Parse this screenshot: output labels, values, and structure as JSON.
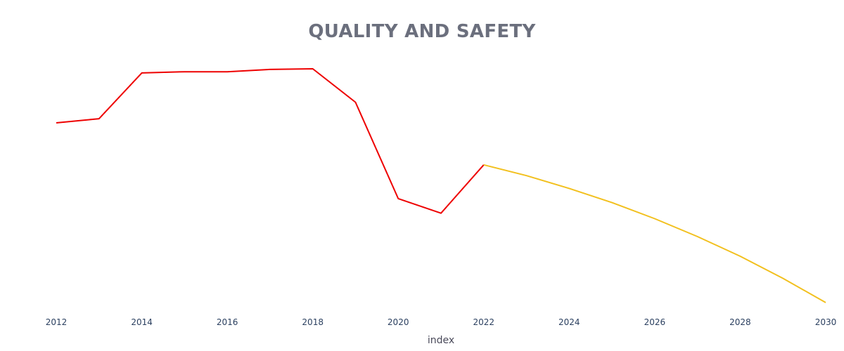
{
  "chart_data": {
    "type": "line",
    "title": "QUALITY AND SAFETY",
    "xlabel": "index",
    "ylabel": "",
    "x_ticks": [
      "2012",
      "2014",
      "2016",
      "2018",
      "2020",
      "2022",
      "2024",
      "2026",
      "2028",
      "2030"
    ],
    "xlim": [
      2012,
      2030
    ],
    "y_axis_visible": false,
    "grid": false,
    "series": [
      {
        "color": "#ee0000",
        "x": [
          2012,
          2013,
          2014,
          2015,
          2016,
          2017,
          2018,
          2019,
          2020,
          2021,
          2022
        ],
        "values": [
          0.706,
          0.726,
          0.945,
          0.951,
          0.951,
          0.962,
          0.965,
          0.805,
          0.343,
          0.273,
          0.505
        ]
      },
      {
        "color": "#f2c01e",
        "x": [
          2022,
          2023,
          2024,
          2025,
          2026,
          2027,
          2028,
          2029,
          2030
        ],
        "values": [
          0.505,
          0.453,
          0.392,
          0.324,
          0.247,
          0.161,
          0.067,
          -0.039,
          -0.155
        ]
      }
    ]
  }
}
